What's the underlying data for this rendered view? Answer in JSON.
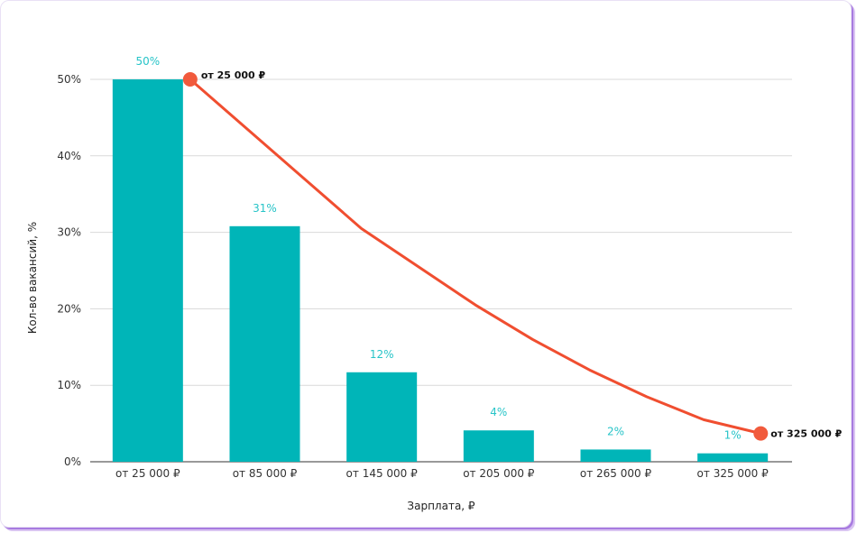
{
  "chart_data": {
    "type": "bar",
    "categories": [
      "от 25 000 ₽",
      "от 85 000 ₽",
      "от 145 000 ₽",
      "от 205 000 ₽",
      "от 265 000 ₽",
      "от 325 000 ₽"
    ],
    "values": [
      50,
      30.8,
      11.7,
      4.1,
      1.6,
      1.1
    ],
    "data_labels": [
      "50%",
      "31%",
      "12%",
      "4%",
      "2%",
      "1%"
    ],
    "trend_line": {
      "type": "line",
      "values": [
        50,
        43.5,
        37,
        30.5,
        25.5,
        20.5,
        16,
        12,
        8.5,
        5.5,
        3.7
      ],
      "start_label": "от 25 000 ₽",
      "end_label": "от 325 000 ₽"
    },
    "xlabel": "Зарплата, ₽",
    "ylabel": "Кол-во вакансий, %",
    "ylim": [
      0,
      50
    ],
    "yticks": [
      "0%",
      "10%",
      "20%",
      "30%",
      "40%",
      "50%"
    ],
    "ytick_values": [
      0,
      10,
      20,
      30,
      40,
      50
    ],
    "grid": true,
    "colors": {
      "bar": "#00b5b8",
      "data_label": "#27c4c8",
      "line": "#f04e30",
      "marker": "#f15a3c",
      "grid": "#d9d9d9"
    }
  }
}
